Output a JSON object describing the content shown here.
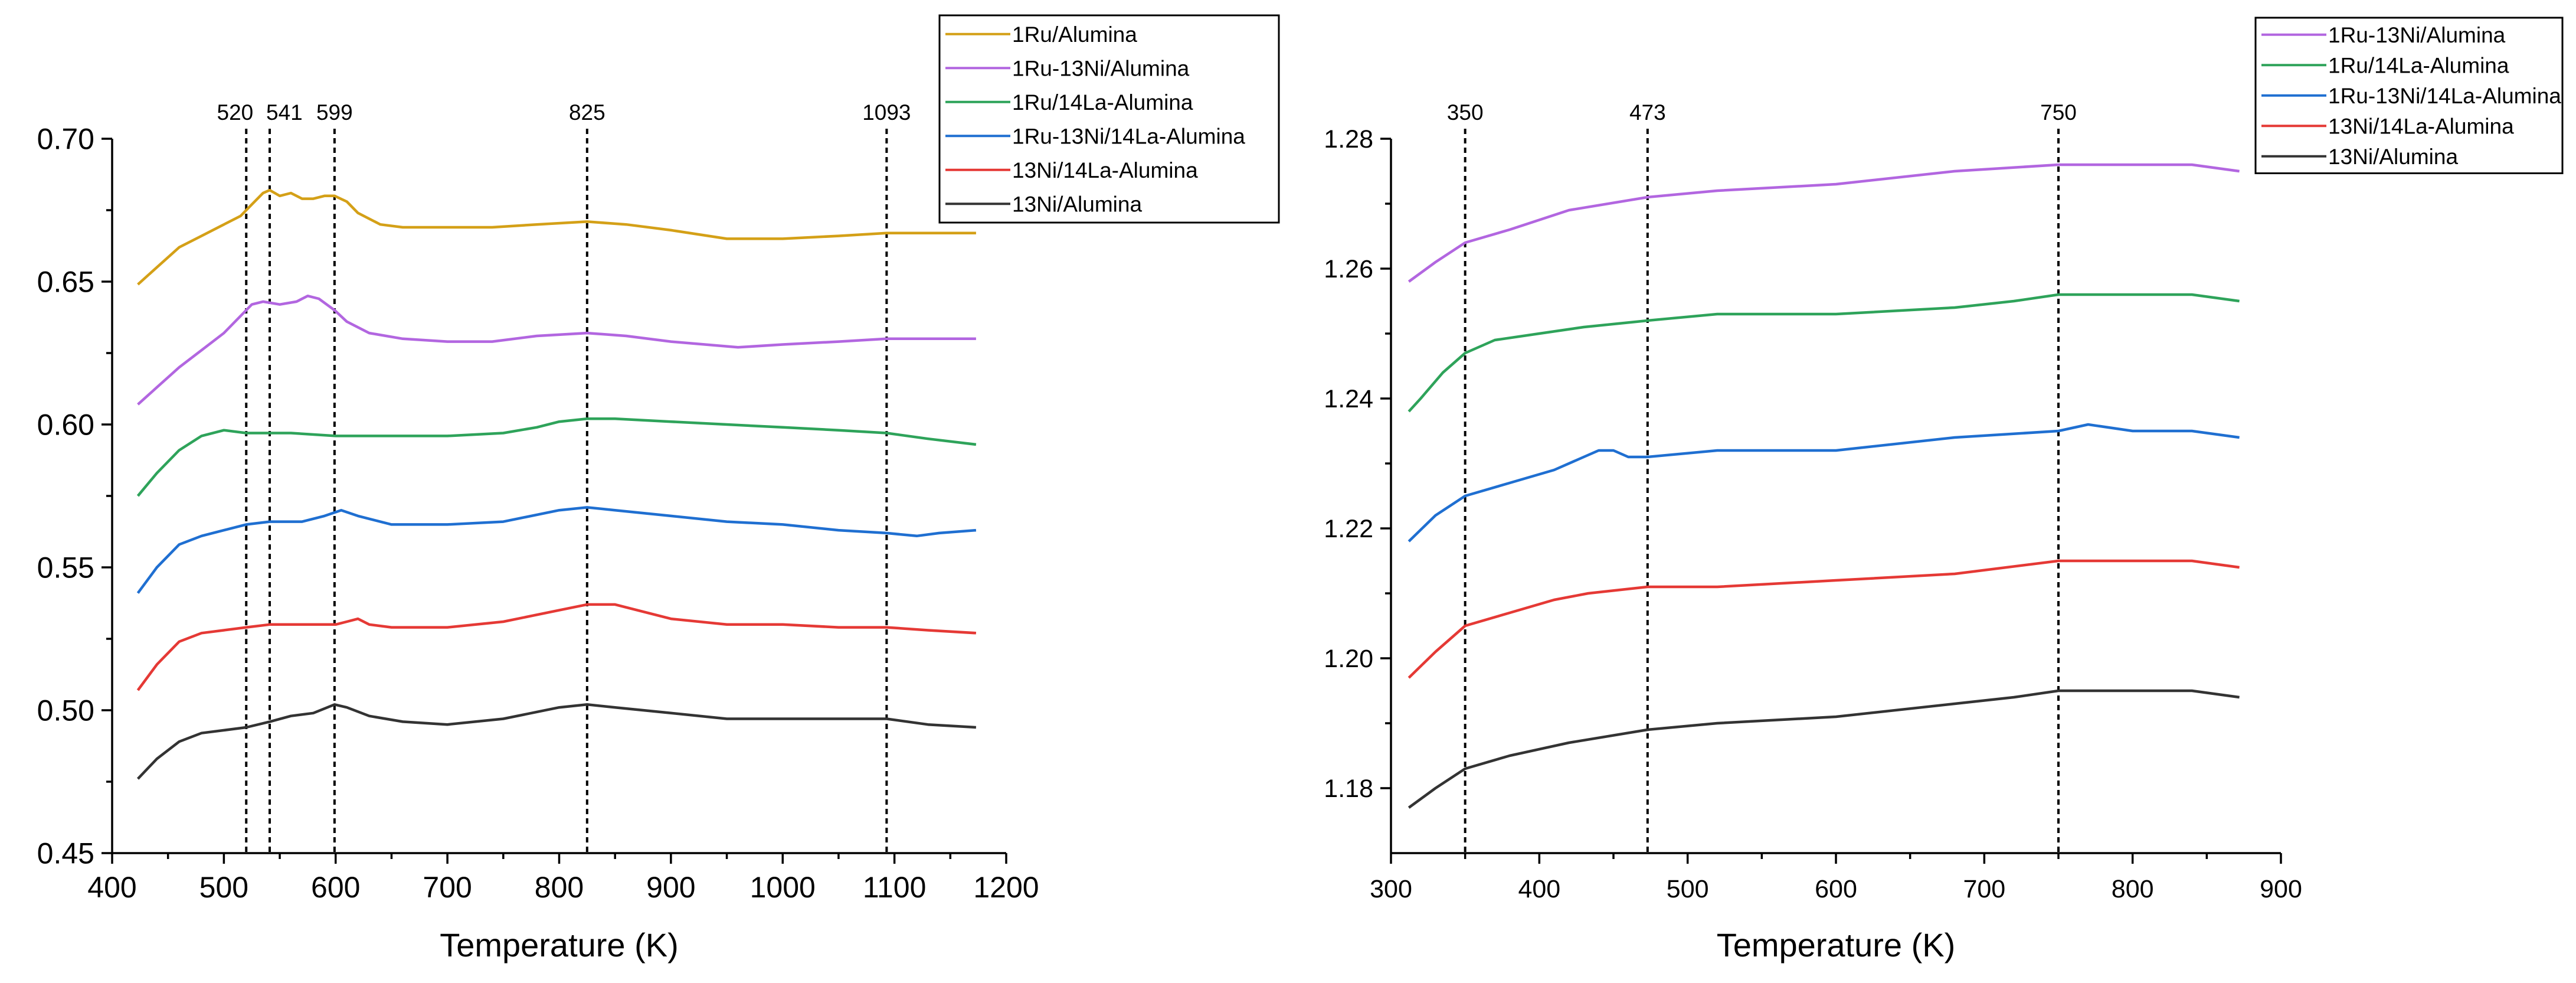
{
  "chart_data": [
    {
      "type": "line",
      "title": "",
      "xlabel": "Temperature (K)",
      "ylabel": "",
      "xlim": [
        400,
        1200
      ],
      "ylim": [
        0.45,
        0.7
      ],
      "x_ticks": [
        400,
        500,
        600,
        700,
        800,
        900,
        1000,
        1100,
        1200
      ],
      "y_ticks": [
        "0.45",
        "0.50",
        "0.55",
        "0.60",
        "0.65",
        "0.70"
      ],
      "reference_lines": [
        {
          "x": 520,
          "label": "520"
        },
        {
          "x": 541,
          "label": "541"
        },
        {
          "x": 599,
          "label": "599"
        },
        {
          "x": 825,
          "label": "825"
        },
        {
          "x": 1093,
          "label": "1093"
        }
      ],
      "legend": [
        "1Ru/Alumina",
        "1Ru-13Ni/Alumina",
        "1Ru/14La-Alumina",
        "1Ru-13Ni/14La-Alumina",
        "13Ni/14La-Alumina",
        "13Ni/Alumina"
      ],
      "series": [
        {
          "name": "1Ru/Alumina",
          "color": "#d4a017",
          "x": [
            423,
            440,
            460,
            480,
            500,
            515,
            525,
            535,
            541,
            550,
            560,
            570,
            580,
            590,
            599,
            610,
            620,
            640,
            660,
            700,
            740,
            780,
            825,
            860,
            900,
            950,
            1000,
            1050,
            1093,
            1130,
            1173
          ],
          "y": [
            0.649,
            0.655,
            0.662,
            0.666,
            0.67,
            0.673,
            0.677,
            0.681,
            0.682,
            0.68,
            0.681,
            0.679,
            0.679,
            0.68,
            0.68,
            0.678,
            0.674,
            0.67,
            0.669,
            0.669,
            0.669,
            0.67,
            0.671,
            0.67,
            0.668,
            0.665,
            0.665,
            0.666,
            0.667,
            0.667,
            0.667
          ]
        },
        {
          "name": "1Ru-13Ni/Alumina",
          "color": "#b266e0",
          "x": [
            423,
            440,
            460,
            480,
            500,
            515,
            525,
            535,
            550,
            565,
            575,
            585,
            599,
            610,
            630,
            660,
            700,
            740,
            780,
            825,
            860,
            900,
            960,
            1000,
            1050,
            1093,
            1173
          ],
          "y": [
            0.607,
            0.613,
            0.62,
            0.626,
            0.632,
            0.638,
            0.642,
            0.643,
            0.642,
            0.643,
            0.645,
            0.644,
            0.64,
            0.636,
            0.632,
            0.63,
            0.629,
            0.629,
            0.631,
            0.632,
            0.631,
            0.629,
            0.627,
            0.628,
            0.629,
            0.63,
            0.63
          ]
        },
        {
          "name": "1Ru/14La-Alumina",
          "color": "#2ea35a",
          "x": [
            423,
            440,
            460,
            480,
            500,
            520,
            541,
            560,
            600,
            650,
            700,
            750,
            780,
            800,
            825,
            850,
            900,
            950,
            1000,
            1050,
            1093,
            1130,
            1173
          ],
          "y": [
            0.575,
            0.583,
            0.591,
            0.596,
            0.598,
            0.597,
            0.597,
            0.597,
            0.596,
            0.596,
            0.596,
            0.597,
            0.599,
            0.601,
            0.602,
            0.602,
            0.601,
            0.6,
            0.599,
            0.598,
            0.597,
            0.595,
            0.593
          ]
        },
        {
          "name": "1Ru-13Ni/14La-Alumina",
          "color": "#1f6fd1",
          "x": [
            423,
            440,
            460,
            480,
            500,
            520,
            541,
            570,
            590,
            605,
            620,
            650,
            700,
            750,
            800,
            825,
            850,
            900,
            950,
            1000,
            1050,
            1093,
            1120,
            1140,
            1173
          ],
          "y": [
            0.541,
            0.55,
            0.558,
            0.561,
            0.563,
            0.565,
            0.566,
            0.566,
            0.568,
            0.57,
            0.568,
            0.565,
            0.565,
            0.566,
            0.57,
            0.571,
            0.57,
            0.568,
            0.566,
            0.565,
            0.563,
            0.562,
            0.561,
            0.562,
            0.563
          ]
        },
        {
          "name": "13Ni/14La-Alumina",
          "color": "#e53935",
          "x": [
            423,
            440,
            460,
            480,
            500,
            520,
            541,
            560,
            600,
            610,
            620,
            630,
            650,
            700,
            750,
            800,
            825,
            850,
            900,
            950,
            1000,
            1050,
            1093,
            1130,
            1173
          ],
          "y": [
            0.507,
            0.516,
            0.524,
            0.527,
            0.528,
            0.529,
            0.53,
            0.53,
            0.53,
            0.531,
            0.532,
            0.53,
            0.529,
            0.529,
            0.531,
            0.535,
            0.537,
            0.537,
            0.532,
            0.53,
            0.53,
            0.529,
            0.529,
            0.528,
            0.527
          ]
        },
        {
          "name": "13Ni/Alumina",
          "color": "#333333",
          "x": [
            423,
            440,
            460,
            480,
            500,
            520,
            541,
            560,
            580,
            599,
            610,
            630,
            660,
            700,
            750,
            800,
            825,
            850,
            900,
            950,
            1000,
            1050,
            1093,
            1130,
            1173
          ],
          "y": [
            0.476,
            0.483,
            0.489,
            0.492,
            0.493,
            0.494,
            0.496,
            0.498,
            0.499,
            0.502,
            0.501,
            0.498,
            0.496,
            0.495,
            0.497,
            0.501,
            0.502,
            0.501,
            0.499,
            0.497,
            0.497,
            0.497,
            0.497,
            0.495,
            0.494
          ]
        }
      ]
    },
    {
      "type": "line",
      "title": "",
      "xlabel": "Temperature (K)",
      "ylabel": "",
      "xlim": [
        300,
        900
      ],
      "ylim": [
        1.17,
        1.28
      ],
      "x_ticks": [
        300,
        400,
        500,
        600,
        700,
        800,
        900
      ],
      "y_ticks": [
        "1.18",
        "1.20",
        "1.22",
        "1.24",
        "1.26",
        "1.28"
      ],
      "reference_lines": [
        {
          "x": 350,
          "label": "350"
        },
        {
          "x": 473,
          "label": "473"
        },
        {
          "x": 750,
          "label": "750"
        }
      ],
      "legend": [
        "1Ru-13Ni/Alumina",
        "1Ru/14La-Alumina",
        "1Ru-13Ni/14La-Alumina",
        "13Ni/14La-Alumina",
        "13Ni/Alumina"
      ],
      "series": [
        {
          "name": "1Ru-13Ni/Alumina",
          "color": "#b266e0",
          "x": [
            312,
            330,
            350,
            380,
            420,
            473,
            520,
            600,
            680,
            750,
            800,
            840,
            872
          ],
          "y": [
            1.258,
            1.261,
            1.264,
            1.266,
            1.269,
            1.271,
            1.272,
            1.273,
            1.275,
            1.276,
            1.276,
            1.276,
            1.275
          ]
        },
        {
          "name": "1Ru/14La-Alumina",
          "color": "#2ea35a",
          "x": [
            312,
            320,
            335,
            350,
            370,
            400,
            430,
            473,
            520,
            600,
            680,
            720,
            750,
            770,
            800,
            840,
            872
          ],
          "y": [
            1.238,
            1.24,
            1.244,
            1.247,
            1.249,
            1.25,
            1.251,
            1.252,
            1.253,
            1.253,
            1.254,
            1.255,
            1.256,
            1.256,
            1.256,
            1.256,
            1.255
          ]
        },
        {
          "name": "1Ru-13Ni/14La-Alumina",
          "color": "#1f6fd1",
          "x": [
            312,
            330,
            350,
            380,
            410,
            430,
            440,
            450,
            460,
            473,
            520,
            600,
            680,
            750,
            770,
            800,
            840,
            872
          ],
          "y": [
            1.218,
            1.222,
            1.225,
            1.227,
            1.229,
            1.231,
            1.232,
            1.232,
            1.231,
            1.231,
            1.232,
            1.232,
            1.234,
            1.235,
            1.236,
            1.235,
            1.235,
            1.234
          ]
        },
        {
          "name": "13Ni/14La-Alumina",
          "color": "#e53935",
          "x": [
            312,
            330,
            350,
            380,
            410,
            433,
            473,
            520,
            600,
            680,
            750,
            770,
            800,
            840,
            872
          ],
          "y": [
            1.197,
            1.201,
            1.205,
            1.207,
            1.209,
            1.21,
            1.211,
            1.211,
            1.212,
            1.213,
            1.215,
            1.215,
            1.215,
            1.215,
            1.214
          ]
        },
        {
          "name": "13Ni/Alumina",
          "color": "#333333",
          "x": [
            312,
            330,
            350,
            380,
            420,
            473,
            520,
            600,
            680,
            720,
            750,
            770,
            800,
            840,
            872
          ],
          "y": [
            1.177,
            1.18,
            1.183,
            1.185,
            1.187,
            1.189,
            1.19,
            1.191,
            1.193,
            1.194,
            1.195,
            1.195,
            1.195,
            1.195,
            1.194
          ]
        }
      ]
    }
  ]
}
